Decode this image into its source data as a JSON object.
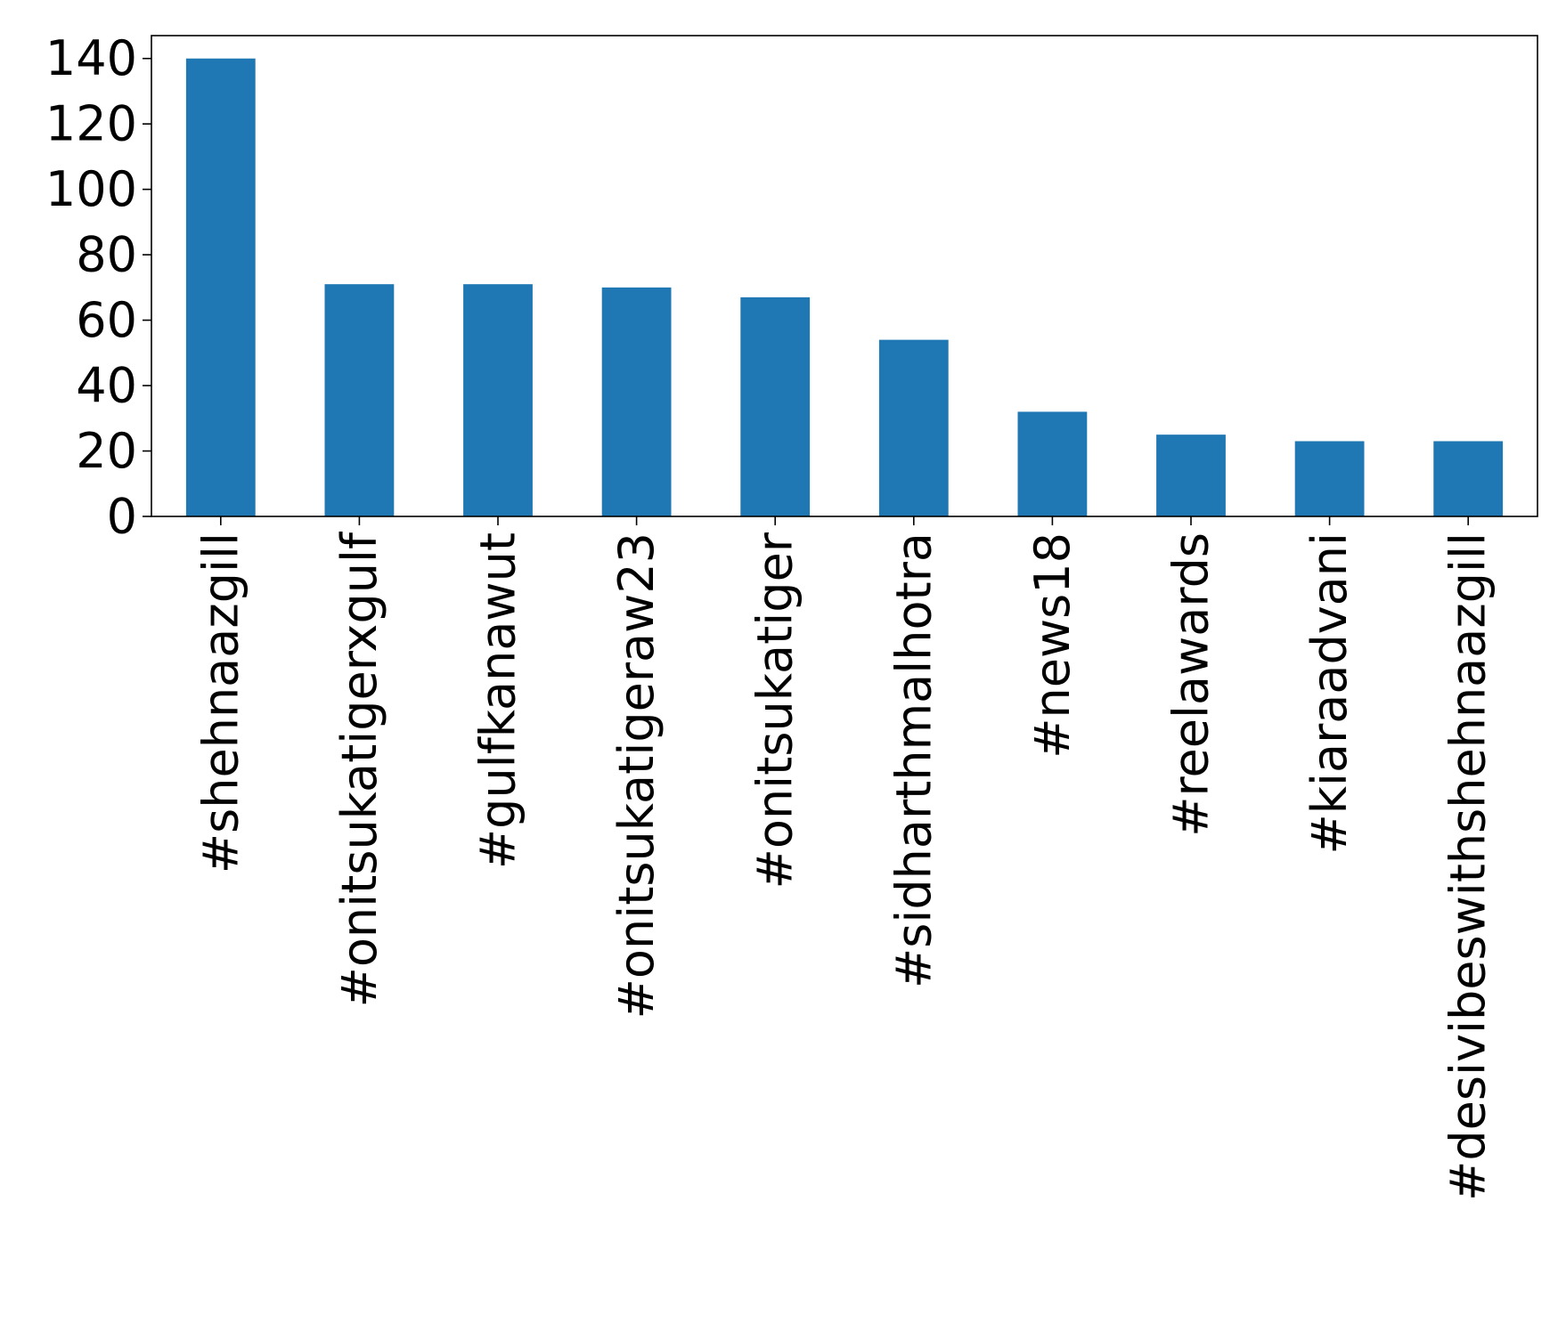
{
  "chart_data": {
    "type": "bar",
    "categories": [
      "#shehnaazgill",
      "#onitsukatigerxgulf",
      "#gulfkanawut",
      "#onitsukatigeraw23",
      "#onitsukatiger",
      "#sidharthmalhotra",
      "#news18",
      "#reelawards",
      "#kiaraadvani",
      "#desivibeswithshehnaazgill"
    ],
    "values": [
      140,
      71,
      71,
      70,
      67,
      54,
      32,
      25,
      23,
      23
    ],
    "ylim": [
      0,
      147
    ],
    "yticks": [
      0,
      20,
      40,
      60,
      80,
      100,
      120,
      140
    ],
    "ytick_labels": [
      "0",
      "20",
      "40",
      "60",
      "80",
      "100",
      "120",
      "140"
    ],
    "bar_color": "#1f77b4",
    "grid": false,
    "legend": "none"
  }
}
